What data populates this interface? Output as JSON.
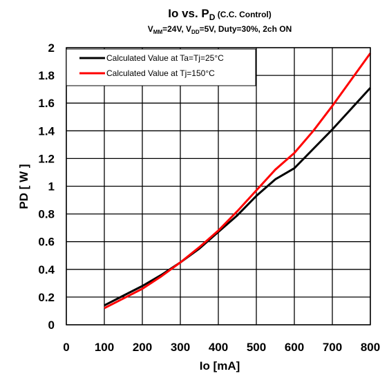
{
  "chart_data": {
    "type": "line",
    "title": {
      "main": "Io vs. P",
      "sub": "D",
      "suffix": " (C.C. Control)"
    },
    "subtitle": {
      "p1": "V",
      "s1": "MM",
      "p2": "=24V, V",
      "s2": "DD",
      "p3": "=5V, Duty=30%, 2ch ON"
    },
    "xlabel": "Io [mA]",
    "ylabel": "PD [ W ]",
    "xlim": [
      0,
      800
    ],
    "ylim": [
      0,
      2
    ],
    "xticks": [
      0,
      100,
      200,
      300,
      400,
      500,
      600,
      700,
      800
    ],
    "yticks": [
      0,
      0.2,
      0.4,
      0.6,
      0.8,
      1,
      1.2,
      1.4,
      1.6,
      1.8,
      2
    ],
    "grid": true,
    "legend_position": "top-left",
    "series": [
      {
        "name": "Calculated Value at Ta=Tj=25°C",
        "color": "#000000",
        "x": [
          100,
          150,
          200,
          250,
          300,
          350,
          400,
          450,
          500,
          550,
          600,
          650,
          700,
          750,
          800
        ],
        "y": [
          0.14,
          0.21,
          0.28,
          0.36,
          0.45,
          0.55,
          0.67,
          0.79,
          0.93,
          1.05,
          1.13,
          1.27,
          1.41,
          1.56,
          1.71
        ]
      },
      {
        "name": "Calculated Value at Tj=150°C",
        "color": "#ff0000",
        "x": [
          100,
          150,
          200,
          250,
          300,
          350,
          400,
          450,
          500,
          550,
          600,
          650,
          700,
          750,
          800
        ],
        "y": [
          0.12,
          0.19,
          0.26,
          0.35,
          0.45,
          0.56,
          0.68,
          0.82,
          0.97,
          1.12,
          1.24,
          1.4,
          1.58,
          1.77,
          1.96
        ]
      }
    ]
  }
}
